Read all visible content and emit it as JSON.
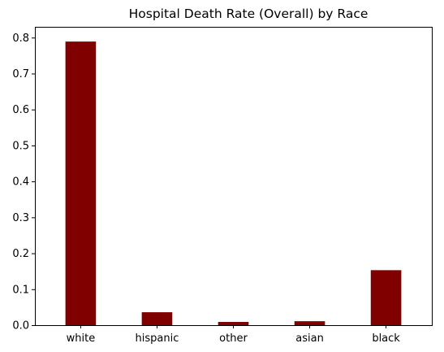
{
  "chart_data": {
    "type": "bar",
    "title": "Hospital Death Rate (Overall) by Race",
    "xlabel": "",
    "ylabel": "",
    "categories": [
      "white",
      "hispanic",
      "other",
      "asian",
      "black"
    ],
    "values": [
      0.789,
      0.036,
      0.009,
      0.011,
      0.153
    ],
    "ylim": [
      0,
      0.83
    ],
    "yticks": [
      "0.0",
      "0.1",
      "0.2",
      "0.3",
      "0.4",
      "0.5",
      "0.6",
      "0.7",
      "0.8"
    ],
    "bar_color": "#800000",
    "grid": false,
    "legend": "none"
  }
}
